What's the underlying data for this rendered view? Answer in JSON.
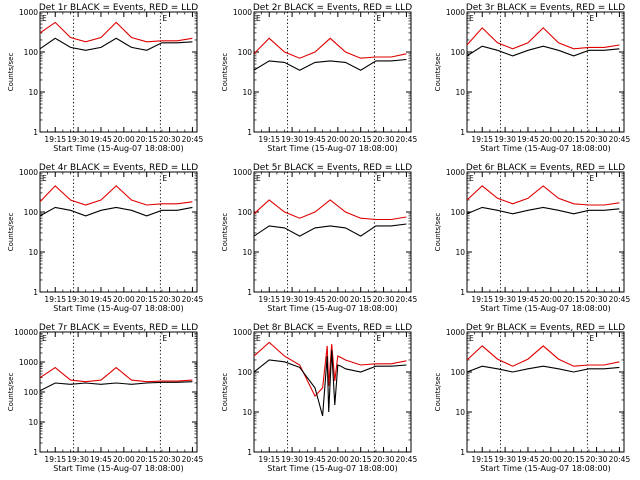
{
  "chart_data": [
    {
      "type": "line",
      "title": "Det 1r BLACK = Events, RED = LLD",
      "xlabel": "Start Time (15-Aug-07 18:08:00)",
      "ylabel": "Counts/sec",
      "ylim": [
        1,
        1000
      ],
      "yscale": "log",
      "x_ticks": [
        "19:15",
        "19:30",
        "19:45",
        "20:00",
        "20:15",
        "20:30",
        "20:45"
      ],
      "y_ticks": [
        "1",
        "10",
        "100",
        "1000"
      ],
      "markers": [
        "19:27",
        "20:24"
      ],
      "corner_labels": [
        "E",
        "E"
      ],
      "series": [
        {
          "color": "#e00000",
          "x": [
            "19:05",
            "19:15",
            "19:25",
            "19:35",
            "19:45",
            "19:55",
            "20:05",
            "20:15",
            "20:25",
            "20:35",
            "20:45"
          ],
          "values": [
            300,
            550,
            230,
            180,
            230,
            550,
            230,
            180,
            190,
            190,
            220
          ]
        },
        {
          "color": "#000000",
          "x": [
            "19:05",
            "19:15",
            "19:25",
            "19:35",
            "19:45",
            "19:55",
            "20:05",
            "20:15",
            "20:25",
            "20:35",
            "20:45"
          ],
          "values": [
            120,
            220,
            130,
            110,
            130,
            220,
            130,
            110,
            170,
            170,
            180
          ]
        }
      ]
    },
    {
      "type": "line",
      "title": "Det 2r BLACK = Events, RED = LLD",
      "xlabel": "Start Time (15-Aug-07 18:08:00)",
      "ylabel": "Counts/sec",
      "ylim": [
        1,
        1000
      ],
      "yscale": "log",
      "x_ticks": [
        "19:15",
        "19:30",
        "19:45",
        "20:00",
        "20:15",
        "20:30",
        "20:45"
      ],
      "y_ticks": [
        "1",
        "10",
        "100",
        "1000"
      ],
      "markers": [
        "19:27",
        "20:24"
      ],
      "corner_labels": [
        "E",
        "E"
      ],
      "series": [
        {
          "color": "#e00000",
          "x": [
            "19:05",
            "19:15",
            "19:25",
            "19:35",
            "19:45",
            "19:55",
            "20:05",
            "20:15",
            "20:25",
            "20:35",
            "20:45"
          ],
          "values": [
            90,
            220,
            100,
            70,
            100,
            220,
            100,
            70,
            75,
            75,
            90
          ]
        },
        {
          "color": "#000000",
          "x": [
            "19:05",
            "19:15",
            "19:25",
            "19:35",
            "19:45",
            "19:55",
            "20:05",
            "20:15",
            "20:25",
            "20:35",
            "20:45"
          ],
          "values": [
            35,
            60,
            55,
            35,
            55,
            60,
            55,
            35,
            60,
            60,
            65
          ]
        }
      ]
    },
    {
      "type": "line",
      "title": "Det 3r BLACK = Events, RED = LLD",
      "xlabel": "Start Time (15-Aug-07 18:08:00)",
      "ylabel": "Counts/sec",
      "ylim": [
        1,
        1000
      ],
      "yscale": "log",
      "x_ticks": [
        "19:15",
        "19:30",
        "19:45",
        "20:00",
        "20:15",
        "20:30",
        "20:45"
      ],
      "y_ticks": [
        "1",
        "10",
        "100",
        "1000"
      ],
      "markers": [
        "19:27",
        "20:24"
      ],
      "corner_labels": [
        "E",
        "E"
      ],
      "series": [
        {
          "color": "#e00000",
          "x": [
            "19:05",
            "19:15",
            "19:25",
            "19:35",
            "19:45",
            "19:55",
            "20:05",
            "20:15",
            "20:25",
            "20:35",
            "20:45"
          ],
          "values": [
            150,
            400,
            170,
            120,
            170,
            400,
            170,
            120,
            130,
            130,
            150
          ]
        },
        {
          "color": "#000000",
          "x": [
            "19:05",
            "19:15",
            "19:25",
            "19:35",
            "19:45",
            "19:55",
            "20:05",
            "20:15",
            "20:25",
            "20:35",
            "20:45"
          ],
          "values": [
            80,
            140,
            110,
            80,
            110,
            140,
            110,
            80,
            110,
            110,
            120
          ]
        }
      ]
    },
    {
      "type": "line",
      "title": "Det 4r BLACK = Events, RED = LLD",
      "xlabel": "Start Time (15-Aug-07 18:08:00)",
      "ylabel": "Counts/sec",
      "ylim": [
        1,
        1000
      ],
      "yscale": "log",
      "x_ticks": [
        "19:15",
        "19:30",
        "19:45",
        "20:00",
        "20:15",
        "20:30",
        "20:45"
      ],
      "y_ticks": [
        "1",
        "10",
        "100",
        "1000"
      ],
      "markers": [
        "19:27",
        "20:24"
      ],
      "corner_labels": [
        "E",
        "E"
      ],
      "series": [
        {
          "color": "#e00000",
          "x": [
            "19:05",
            "19:15",
            "19:25",
            "19:35",
            "19:45",
            "19:55",
            "20:05",
            "20:15",
            "20:25",
            "20:35",
            "20:45"
          ],
          "values": [
            180,
            450,
            200,
            150,
            200,
            450,
            200,
            150,
            160,
            160,
            180
          ]
        },
        {
          "color": "#000000",
          "x": [
            "19:05",
            "19:15",
            "19:25",
            "19:35",
            "19:45",
            "19:55",
            "20:05",
            "20:15",
            "20:25",
            "20:35",
            "20:45"
          ],
          "values": [
            80,
            130,
            110,
            80,
            110,
            130,
            110,
            80,
            110,
            110,
            130
          ]
        }
      ]
    },
    {
      "type": "line",
      "title": "Det 5r BLACK = Events, RED = LLD",
      "xlabel": "Start Time (15-Aug-07 18:08:00)",
      "ylabel": "Counts/sec",
      "ylim": [
        1,
        1000
      ],
      "yscale": "log",
      "x_ticks": [
        "19:15",
        "19:30",
        "19:45",
        "20:00",
        "20:15",
        "20:30",
        "20:45"
      ],
      "y_ticks": [
        "1",
        "10",
        "100",
        "1000"
      ],
      "markers": [
        "19:27",
        "20:24"
      ],
      "corner_labels": [
        "E",
        "E"
      ],
      "series": [
        {
          "color": "#e00000",
          "x": [
            "19:05",
            "19:15",
            "19:25",
            "19:35",
            "19:45",
            "19:55",
            "20:05",
            "20:15",
            "20:25",
            "20:35",
            "20:45"
          ],
          "values": [
            90,
            200,
            100,
            70,
            100,
            200,
            100,
            70,
            65,
            65,
            75
          ]
        },
        {
          "color": "#000000",
          "x": [
            "19:05",
            "19:15",
            "19:25",
            "19:35",
            "19:45",
            "19:55",
            "20:05",
            "20:15",
            "20:25",
            "20:35",
            "20:45"
          ],
          "values": [
            25,
            45,
            40,
            25,
            40,
            45,
            40,
            25,
            45,
            45,
            50
          ]
        }
      ]
    },
    {
      "type": "line",
      "title": "Det 6r BLACK = Events, RED = LLD",
      "xlabel": "Start Time (15-Aug-07 18:08:00)",
      "ylabel": "Counts/sec",
      "ylim": [
        1,
        1000
      ],
      "yscale": "log",
      "x_ticks": [
        "19:15",
        "19:30",
        "19:45",
        "20:00",
        "20:15",
        "20:30",
        "20:45"
      ],
      "y_ticks": [
        "1",
        "10",
        "100",
        "1000"
      ],
      "markers": [
        "19:27",
        "20:24"
      ],
      "corner_labels": [
        "E",
        "E"
      ],
      "series": [
        {
          "color": "#e00000",
          "x": [
            "19:05",
            "19:15",
            "19:25",
            "19:35",
            "19:45",
            "19:55",
            "20:05",
            "20:15",
            "20:25",
            "20:35",
            "20:45"
          ],
          "values": [
            200,
            450,
            220,
            160,
            220,
            450,
            220,
            160,
            150,
            150,
            170
          ]
        },
        {
          "color": "#000000",
          "x": [
            "19:05",
            "19:15",
            "19:25",
            "19:35",
            "19:45",
            "19:55",
            "20:05",
            "20:15",
            "20:25",
            "20:35",
            "20:45"
          ],
          "values": [
            90,
            130,
            110,
            90,
            110,
            130,
            110,
            90,
            110,
            110,
            120
          ]
        }
      ]
    },
    {
      "type": "line",
      "title": "Det 7r BLACK = Events, RED = LLD",
      "xlabel": "Start Time (15-Aug-07 18:08:00)",
      "ylabel": "Counts/sec",
      "ylim": [
        1,
        10000
      ],
      "yscale": "log",
      "x_ticks": [
        "19:15",
        "19:30",
        "19:45",
        "20:00",
        "20:15",
        "20:30",
        "20:45"
      ],
      "y_ticks": [
        "1",
        "10",
        "100",
        "1000",
        "10000"
      ],
      "markers": [
        "19:27",
        "20:24"
      ],
      "corner_labels": [
        "E",
        "E"
      ],
      "series": [
        {
          "color": "#e00000",
          "x": [
            "19:05",
            "19:15",
            "19:25",
            "19:35",
            "19:45",
            "19:55",
            "20:05",
            "20:15",
            "20:25",
            "20:35",
            "20:45"
          ],
          "values": [
            300,
            650,
            250,
            220,
            250,
            650,
            250,
            220,
            230,
            230,
            250
          ]
        },
        {
          "color": "#000000",
          "x": [
            "19:05",
            "19:15",
            "19:25",
            "19:35",
            "19:45",
            "19:55",
            "20:05",
            "20:15",
            "20:25",
            "20:35",
            "20:45"
          ],
          "values": [
            110,
            200,
            180,
            200,
            180,
            200,
            180,
            200,
            210,
            210,
            220
          ]
        }
      ]
    },
    {
      "type": "line",
      "title": "Det 8r BLACK = Events, RED = LLD",
      "xlabel": "Start Time (15-Aug-07 18:08:00)",
      "ylabel": "Counts/sec",
      "ylim": [
        1,
        1000
      ],
      "yscale": "log",
      "x_ticks": [
        "19:15",
        "19:30",
        "19:45",
        "20:00",
        "20:15",
        "20:30",
        "20:45"
      ],
      "y_ticks": [
        "1",
        "10",
        "100",
        "1000"
      ],
      "markers": [
        "19:27",
        "20:24"
      ],
      "corner_labels": [
        "E",
        "E"
      ],
      "series": [
        {
          "color": "#e00000",
          "x": [
            "19:05",
            "19:15",
            "19:25",
            "19:35",
            "19:45",
            "19:50",
            "19:53",
            "19:54",
            "19:56",
            "19:58",
            "20:00",
            "20:02",
            "20:05",
            "20:15",
            "20:25",
            "20:35",
            "20:45"
          ],
          "values": [
            250,
            550,
            250,
            150,
            25,
            40,
            450,
            45,
            500,
            60,
            250,
            230,
            200,
            150,
            160,
            160,
            190
          ]
        },
        {
          "color": "#000000",
          "x": [
            "19:05",
            "19:15",
            "19:25",
            "19:35",
            "19:45",
            "19:50",
            "19:53",
            "19:54",
            "19:56",
            "19:58",
            "20:00",
            "20:02",
            "20:05",
            "20:15",
            "20:25",
            "20:35",
            "20:45"
          ],
          "values": [
            100,
            200,
            180,
            130,
            40,
            8,
            250,
            10,
            350,
            15,
            150,
            140,
            120,
            100,
            140,
            140,
            150
          ]
        }
      ]
    },
    {
      "type": "line",
      "title": "Det 9r BLACK = Events, RED = LLD",
      "xlabel": "Start Time (15-Aug-07 18:08:00)",
      "ylabel": "Counts/sec",
      "ylim": [
        1,
        1000
      ],
      "yscale": "log",
      "x_ticks": [
        "19:15",
        "19:30",
        "19:45",
        "20:00",
        "20:15",
        "20:30",
        "20:45"
      ],
      "y_ticks": [
        "1",
        "10",
        "100",
        "1000"
      ],
      "markers": [
        "19:27",
        "20:24"
      ],
      "corner_labels": [
        "E",
        "E"
      ],
      "series": [
        {
          "color": "#e00000",
          "x": [
            "19:05",
            "19:15",
            "19:25",
            "19:35",
            "19:45",
            "19:55",
            "20:05",
            "20:15",
            "20:25",
            "20:35",
            "20:45"
          ],
          "values": [
            200,
            450,
            210,
            140,
            210,
            450,
            210,
            140,
            150,
            150,
            180
          ]
        },
        {
          "color": "#000000",
          "x": [
            "19:05",
            "19:15",
            "19:25",
            "19:35",
            "19:45",
            "19:55",
            "20:05",
            "20:15",
            "20:25",
            "20:35",
            "20:45"
          ],
          "values": [
            100,
            140,
            120,
            100,
            120,
            140,
            120,
            100,
            120,
            120,
            130
          ]
        }
      ]
    }
  ]
}
